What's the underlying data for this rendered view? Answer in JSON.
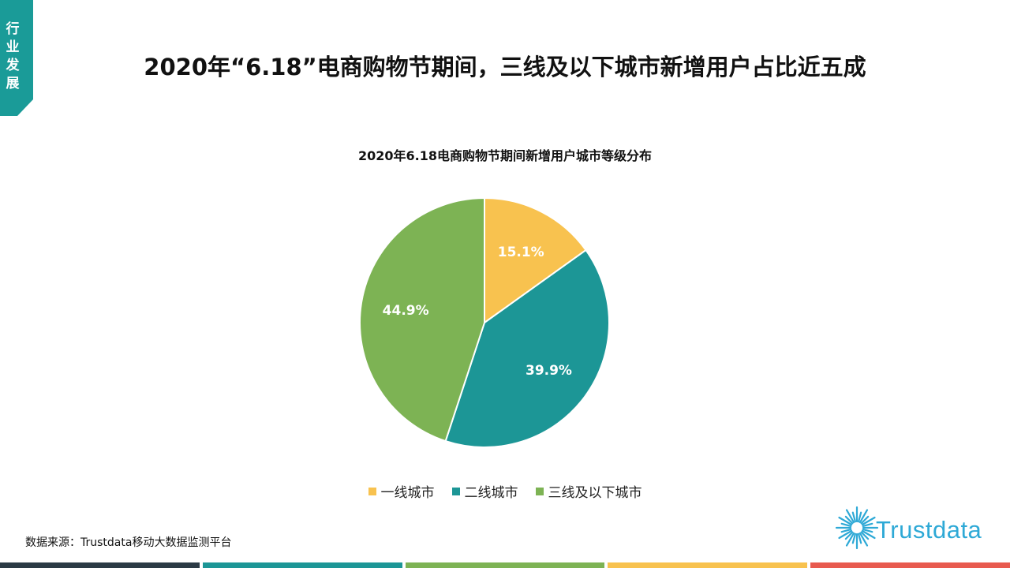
{
  "side_tab": {
    "label": "行业发展",
    "color": "#1a9b98"
  },
  "page": {
    "title": "2020年“6.18”电商购物节期间，三线及以下城市新增用户占比近五成"
  },
  "chart_data": {
    "type": "pie",
    "title": "2020年6.18电商购物节期间新增用户城市等级分布",
    "categories": [
      "一线城市",
      "二线城市",
      "三线及以下城市"
    ],
    "values": [
      15.1,
      39.9,
      44.9
    ],
    "labels": [
      "15.1%",
      "39.9%",
      "44.9%"
    ],
    "colors": [
      "#f8c24f",
      "#1c9696",
      "#7db354"
    ],
    "legend": "bottom"
  },
  "legend": {
    "items": [
      {
        "label": "一线城市",
        "color": "#f8c24f"
      },
      {
        "label": "二线城市",
        "color": "#1c9696"
      },
      {
        "label": "三线及以下城市",
        "color": "#7db354"
      }
    ]
  },
  "source": {
    "text": "数据来源：Trustdata移动大数据监测平台"
  },
  "logo": {
    "text": "Trustdata",
    "color": "#2ea9d6"
  },
  "bottom_bar": {
    "colors": [
      "#2b3a45",
      "#1c9696",
      "#7db354",
      "#f8c24f",
      "#e85a4f"
    ]
  }
}
